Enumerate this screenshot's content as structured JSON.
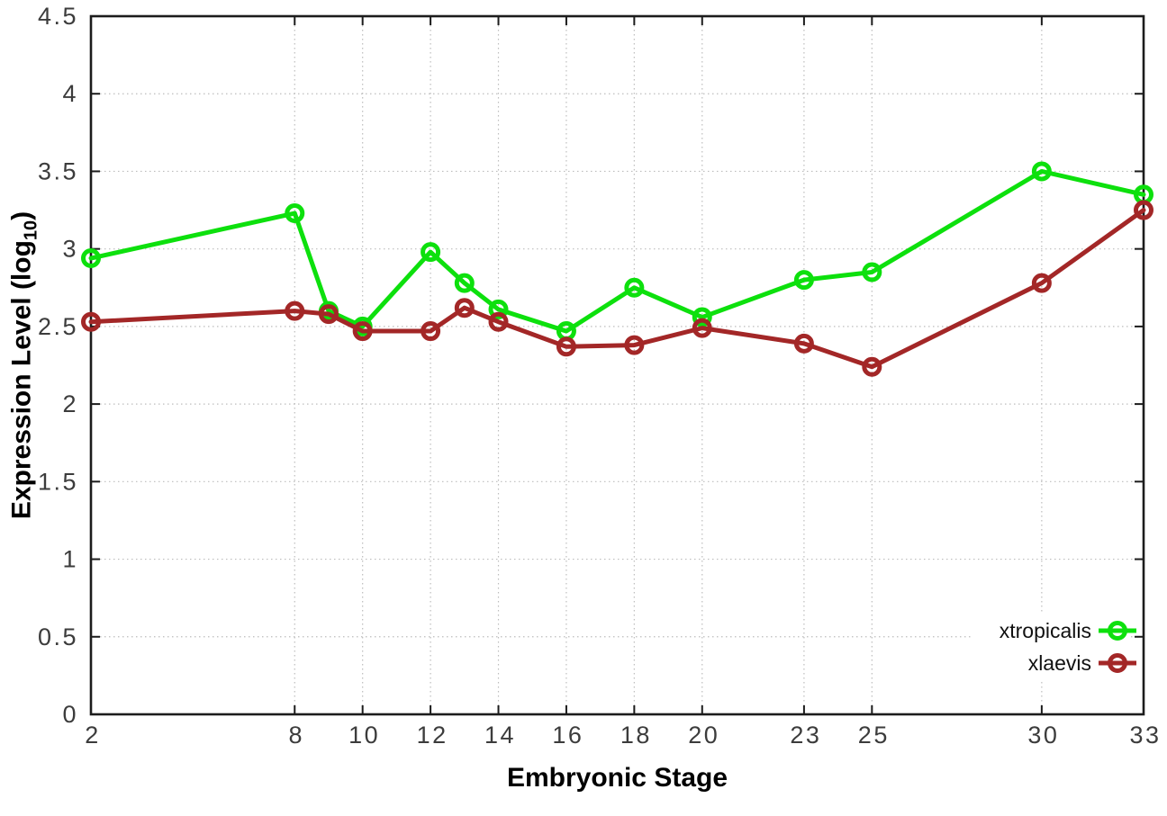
{
  "chart_data": {
    "type": "line",
    "title": "",
    "xlabel": "Embryonic Stage",
    "ylabel": "Expression Level (log10)",
    "ylabel_main": "Expression Level (log",
    "ylabel_sub": "10",
    "ylabel_end": ")",
    "xlim": [
      2,
      33
    ],
    "ylim": [
      0,
      4.5
    ],
    "grid": true,
    "grid_style": "dotted",
    "legend_position": "bottom-right",
    "x_ticks": [
      2,
      8,
      10,
      12,
      14,
      16,
      18,
      20,
      23,
      25,
      30,
      33
    ],
    "x_tick_labels": [
      "2",
      "8",
      "10",
      "12",
      "14",
      "16",
      "18",
      "20",
      "23",
      "25",
      "30",
      "33"
    ],
    "y_ticks": [
      0,
      0.5,
      1,
      1.5,
      2,
      2.5,
      3,
      3.5,
      4,
      4.5
    ],
    "y_tick_labels": [
      "0",
      "0.5",
      "1",
      "1.5",
      "2",
      "2.5",
      "3",
      "3.5",
      "4",
      "4.5"
    ],
    "x": [
      2,
      8,
      9,
      10,
      12,
      13,
      14,
      16,
      18,
      20,
      23,
      25,
      30,
      33
    ],
    "series": [
      {
        "name": "xtropicalis",
        "color": "#0de00d",
        "marker": "open-circle",
        "values": [
          2.94,
          3.23,
          2.6,
          2.5,
          2.98,
          2.78,
          2.61,
          2.47,
          2.75,
          2.56,
          2.8,
          2.85,
          3.5,
          3.35
        ]
      },
      {
        "name": "xlaevis",
        "color": "#a32727",
        "marker": "open-circle",
        "values": [
          2.53,
          2.6,
          2.58,
          2.47,
          2.47,
          2.62,
          2.53,
          2.37,
          2.38,
          2.49,
          2.39,
          2.24,
          2.78,
          3.25
        ]
      }
    ],
    "colors": {
      "axis": "#1c1c1c",
      "grid": "#bdbdbd",
      "tick_label": "#3c3c3c",
      "legend_text": "#111111",
      "background": "#ffffff"
    }
  }
}
